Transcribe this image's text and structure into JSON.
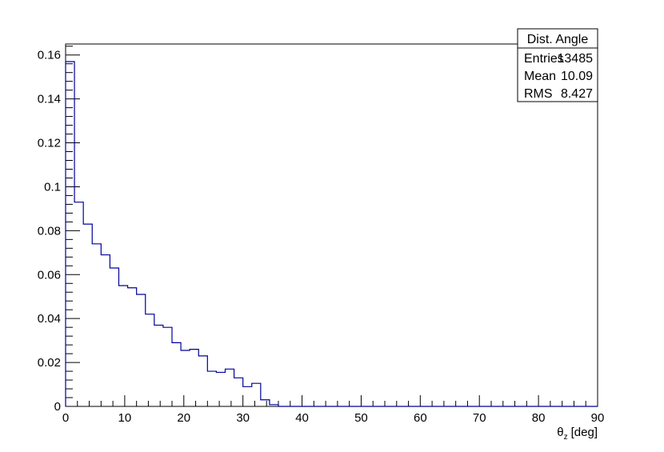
{
  "chart_data": {
    "type": "histogram",
    "xlabel_symbol": "θ",
    "xlabel_sub": "z",
    "xlabel_unit": "[deg]",
    "xlim": [
      0,
      90
    ],
    "ylim": [
      0,
      0.165
    ],
    "bin_width": 1.5,
    "bin_start": 0,
    "values": [
      0.157,
      0.093,
      0.083,
      0.074,
      0.069,
      0.063,
      0.055,
      0.054,
      0.051,
      0.042,
      0.037,
      0.036,
      0.029,
      0.0255,
      0.026,
      0.023,
      0.016,
      0.0155,
      0.017,
      0.013,
      0.009,
      0.0105,
      0.003,
      0.0008,
      0,
      0,
      0,
      0,
      0,
      0,
      0,
      0,
      0,
      0,
      0,
      0,
      0,
      0,
      0,
      0,
      0,
      0,
      0,
      0,
      0,
      0,
      0,
      0,
      0,
      0,
      0,
      0,
      0,
      0,
      0,
      0,
      0,
      0,
      0,
      0
    ],
    "x_ticks": [
      0,
      10,
      20,
      30,
      40,
      50,
      60,
      70,
      80,
      90
    ],
    "x_tick_labels": [
      "0",
      "10",
      "20",
      "30",
      "40",
      "50",
      "60",
      "70",
      "80",
      "90"
    ],
    "y_ticks": [
      0,
      0.02,
      0.04,
      0.06,
      0.08,
      0.1,
      0.12,
      0.14,
      0.16
    ],
    "y_tick_labels": [
      "0",
      "0.02",
      "0.04",
      "0.06",
      "0.08",
      "0.1",
      "0.12",
      "0.14",
      "0.16"
    ],
    "line_color": "#000099",
    "legend_placement": "top-right",
    "grid": false
  },
  "stats_box": {
    "title": "Dist. Angle",
    "rows": [
      {
        "label": "Entries",
        "value": "13485"
      },
      {
        "label": "Mean",
        "value": "10.09"
      },
      {
        "label": "RMS",
        "value": "8.427"
      }
    ]
  }
}
